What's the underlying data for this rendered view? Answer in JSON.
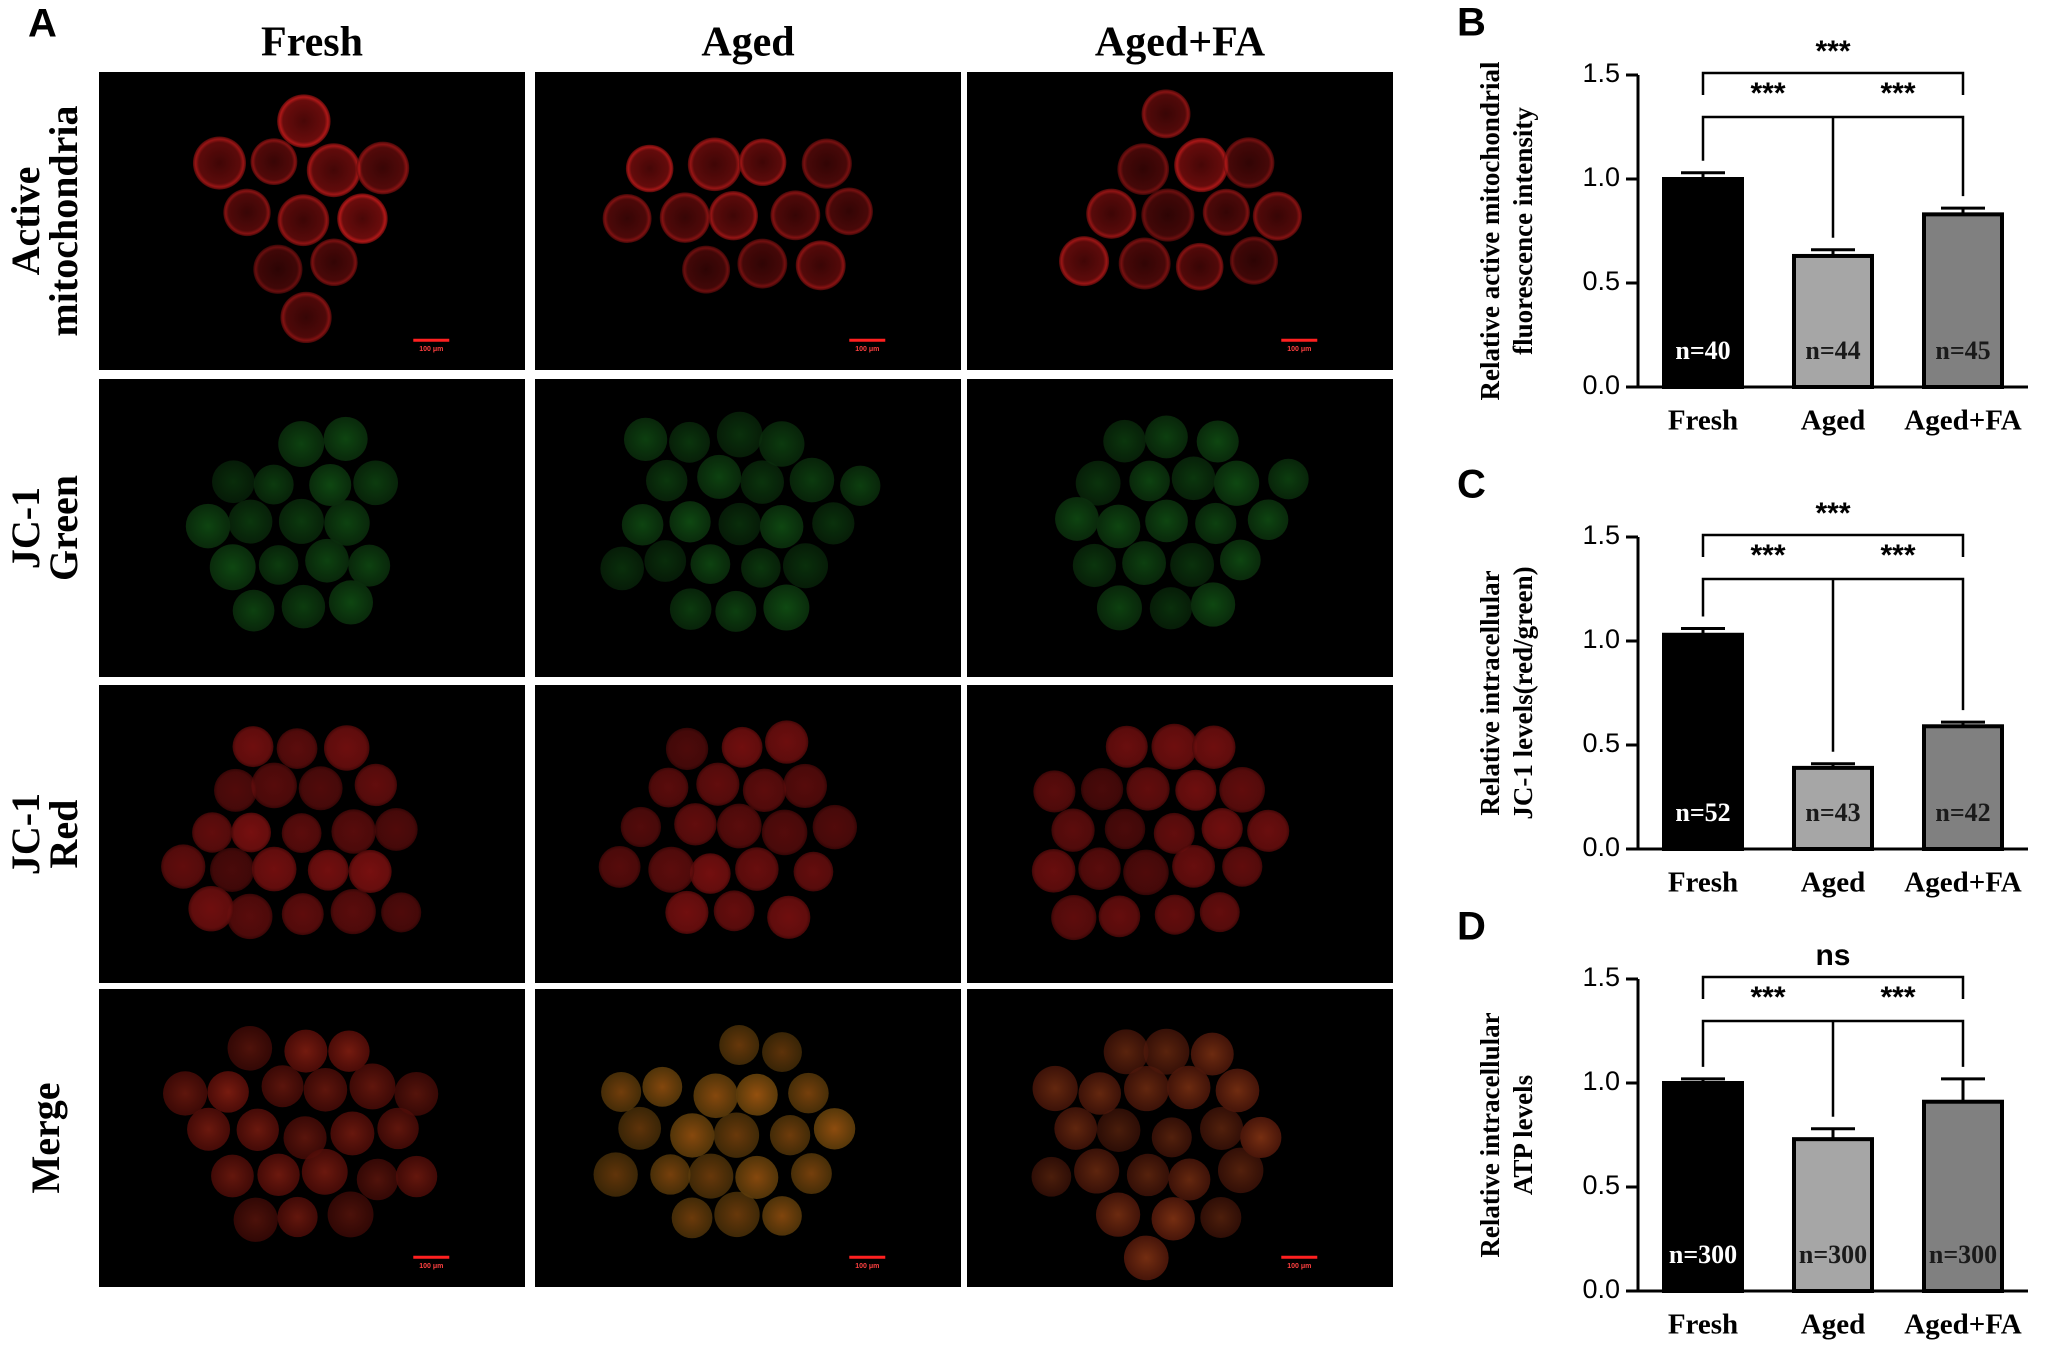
{
  "panel_a": {
    "label": "A",
    "columns": [
      "Fresh",
      "Aged",
      "Aged+FA"
    ],
    "rows": [
      [
        "Active",
        "mitochondria"
      ],
      [
        "JC-1",
        "Green"
      ],
      [
        "JC-1",
        "Red"
      ],
      [
        "Merge"
      ]
    ],
    "scale_bar": "100 μm"
  },
  "chart_data": [
    {
      "type": "bar",
      "panel": "B",
      "ylabel": [
        "Relative active mitochondrial",
        "fluorescence intensity"
      ],
      "categories": [
        "Fresh",
        "Aged",
        "Aged+FA"
      ],
      "values": [
        1.0,
        0.63,
        0.83
      ],
      "errors": [
        0.03,
        0.03,
        0.03
      ],
      "colors": [
        "#000000",
        "#a6a6a6",
        "#808080"
      ],
      "bar_labels": [
        "n=40",
        "n=44",
        "n=45"
      ],
      "significance": {
        "fresh_vs_aged_fa": "***",
        "fresh_vs_aged": "***",
        "aged_vs_aged_fa": "***"
      },
      "ylim": [
        0,
        1.5
      ],
      "yticks": [
        {
          "value": 0,
          "label": "0.0"
        },
        0.5,
        {
          "value": 1,
          "label": "1.0"
        },
        1.5
      ]
    },
    {
      "type": "bar",
      "panel": "C",
      "ylabel": [
        "Relative intracellular",
        "JC-1 levels(red/green)"
      ],
      "categories": [
        "Fresh",
        "Aged",
        "Aged+FA"
      ],
      "values": [
        1.03,
        0.39,
        0.59
      ],
      "errors": [
        0.03,
        0.02,
        0.02
      ],
      "colors": [
        "#000000",
        "#a6a6a6",
        "#808080"
      ],
      "bar_labels": [
        "n=52",
        "n=43",
        "n=42"
      ],
      "significance": {
        "fresh_vs_aged_fa": "***",
        "fresh_vs_aged": "***",
        "aged_vs_aged_fa": "***"
      },
      "ylim": [
        0,
        1.5
      ],
      "yticks": [
        {
          "value": 0,
          "label": "0.0"
        },
        0.5,
        {
          "value": 1,
          "label": "1.0"
        },
        1.5
      ]
    },
    {
      "type": "bar",
      "panel": "D",
      "ylabel": [
        "Relative intracellular",
        "ATP levels"
      ],
      "categories": [
        "Fresh",
        "Aged",
        "Aged+FA"
      ],
      "values": [
        1.0,
        0.73,
        0.91
      ],
      "errors": [
        0.02,
        0.05,
        0.11
      ],
      "colors": [
        "#000000",
        "#a6a6a6",
        "#808080"
      ],
      "bar_labels": [
        "n=300",
        "n=300",
        "n=300"
      ],
      "significance": {
        "fresh_vs_aged_fa": "ns",
        "fresh_vs_aged": "***",
        "aged_vs_aged_fa": "***"
      },
      "ylim": [
        0,
        1.5
      ],
      "yticks": [
        {
          "value": 0,
          "label": "0.0"
        },
        0.5,
        {
          "value": 1,
          "label": "1.0"
        },
        1.5
      ]
    }
  ]
}
